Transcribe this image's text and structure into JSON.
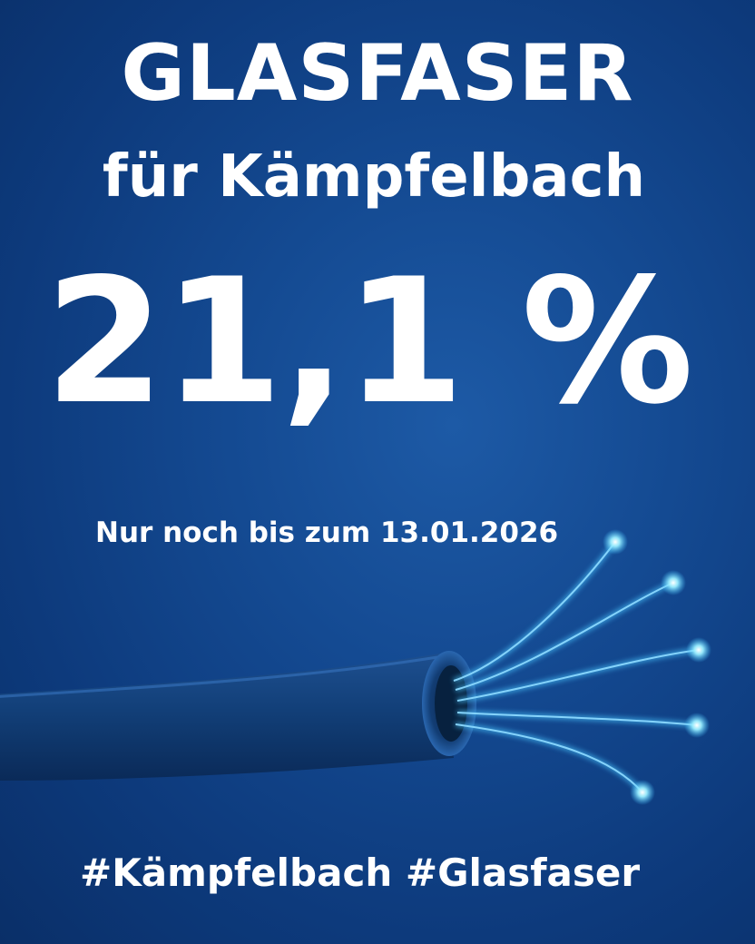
{
  "title": "GLASFASER",
  "subtitle": "für Kämpfelbach",
  "percentage": "21,1 %",
  "deadline": "Nur noch bis zum 13.01.2026",
  "hashtags": "#Kämpfelbach #Glasfaser",
  "colors": {
    "background": "#144a92",
    "text": "#ffffff",
    "fiber_glow": "#7fe4ff"
  },
  "illustration": {
    "type": "fiber-optic-cable",
    "fiber_count": 5
  }
}
